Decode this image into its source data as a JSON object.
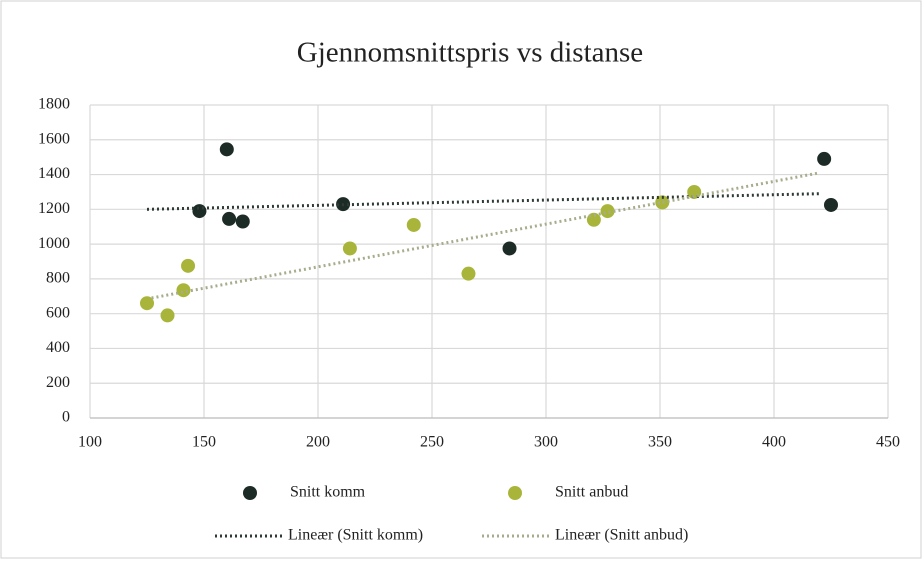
{
  "chart_data": {
    "type": "scatter",
    "title": "Gjennomsnittspris vs distanse",
    "xlim": [
      100,
      450
    ],
    "xticks": [
      100,
      150,
      200,
      250,
      300,
      350,
      400,
      450
    ],
    "ylim": [
      0,
      1800
    ],
    "yticks": [
      0,
      200,
      400,
      600,
      800,
      1000,
      1200,
      1400,
      1600,
      1800
    ],
    "grid": true,
    "series": [
      {
        "name": "Snitt komm",
        "color": "#1c2b26",
        "x": [
          148,
          160,
          161,
          167,
          211,
          284,
          422,
          425
        ],
        "values": [
          1190,
          1545,
          1145,
          1130,
          1230,
          975,
          1490,
          1225
        ]
      },
      {
        "name": "Snitt anbud",
        "color": "#a9b53a",
        "x": [
          125,
          134,
          141,
          143,
          214,
          242,
          266,
          321,
          327,
          351,
          365
        ],
        "values": [
          660,
          590,
          735,
          875,
          975,
          1110,
          830,
          1140,
          1190,
          1240,
          1300
        ]
      }
    ],
    "trendlines": [
      {
        "name": "Lineær (Snitt komm)",
        "color": "#2e3a35",
        "x": [
          125,
          420
        ],
        "values": [
          1200,
          1290
        ]
      },
      {
        "name": "Lineær (Snitt anbud)",
        "color": "#a6ad8c",
        "x": [
          127,
          420
        ],
        "values": [
          690,
          1410
        ]
      }
    ]
  }
}
